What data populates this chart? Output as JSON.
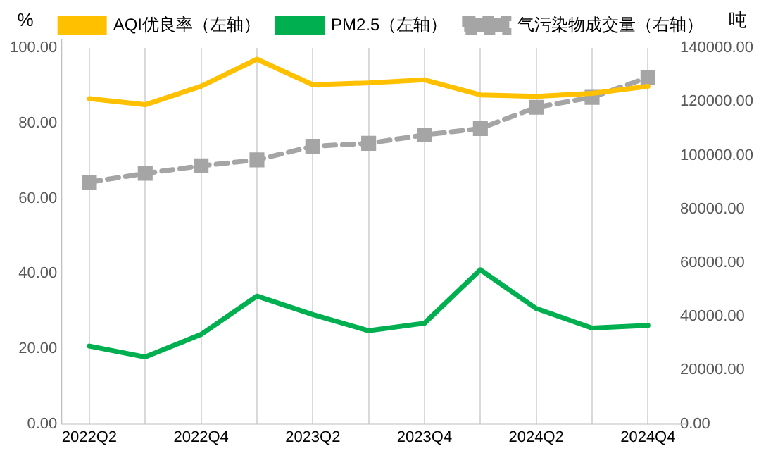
{
  "chart_data": {
    "type": "line",
    "ylabel": "%",
    "y2label": "吨",
    "categories": [
      "2022Q2",
      null,
      "2022Q4",
      null,
      "2023Q2",
      null,
      "2023Q4",
      null,
      "2024Q2",
      null,
      "2024Q4"
    ],
    "series": [
      {
        "name": "AQI优良率（左轴）",
        "color": "#ffc000",
        "values": [
          86.5,
          84.9,
          89.8,
          97.0,
          90.2,
          90.7,
          91.5,
          87.5,
          87.1,
          87.9,
          89.8
        ]
      },
      {
        "name": "PM2.5（左轴）",
        "color": "#00b050",
        "values": [
          20.7,
          17.8,
          23.8,
          34.0,
          29.1,
          24.8,
          26.8,
          41.0,
          30.7,
          25.5,
          26.2
        ]
      },
      {
        "name": "气污染物成交量（右轴）",
        "color": "#a5a5a5",
        "axis": "y2",
        "marker": "square",
        "line_style": "dashed",
        "values": [
          90000,
          93300,
          96100,
          98300,
          103400,
          104500,
          107600,
          110000,
          117900,
          121600,
          129000
        ]
      }
    ],
    "ylim": [
      0,
      100
    ],
    "yticks": [
      {
        "value": 0,
        "label": "0.00"
      },
      {
        "value": 20,
        "label": "20.00"
      },
      {
        "value": 40,
        "label": "40.00"
      },
      {
        "value": 60,
        "label": "60.00"
      },
      {
        "value": 80,
        "label": "80.00"
      },
      {
        "value": 100,
        "label": "100.00"
      }
    ],
    "y2lim": [
      0,
      140000
    ],
    "y2ticks": [
      {
        "value": 0,
        "label": "0.00"
      },
      {
        "value": 20000,
        "label": "20000.00"
      },
      {
        "value": 40000,
        "label": "40000.00"
      },
      {
        "value": 60000,
        "label": "60000.00"
      },
      {
        "value": 80000,
        "label": "80000.00"
      },
      {
        "value": 100000,
        "label": "100000.00"
      },
      {
        "value": 120000,
        "label": "120000.00"
      },
      {
        "value": 140000,
        "label": "140000.00"
      }
    ],
    "grid": "x",
    "legend": "top",
    "marker": "none",
    "line_style": "solid"
  }
}
